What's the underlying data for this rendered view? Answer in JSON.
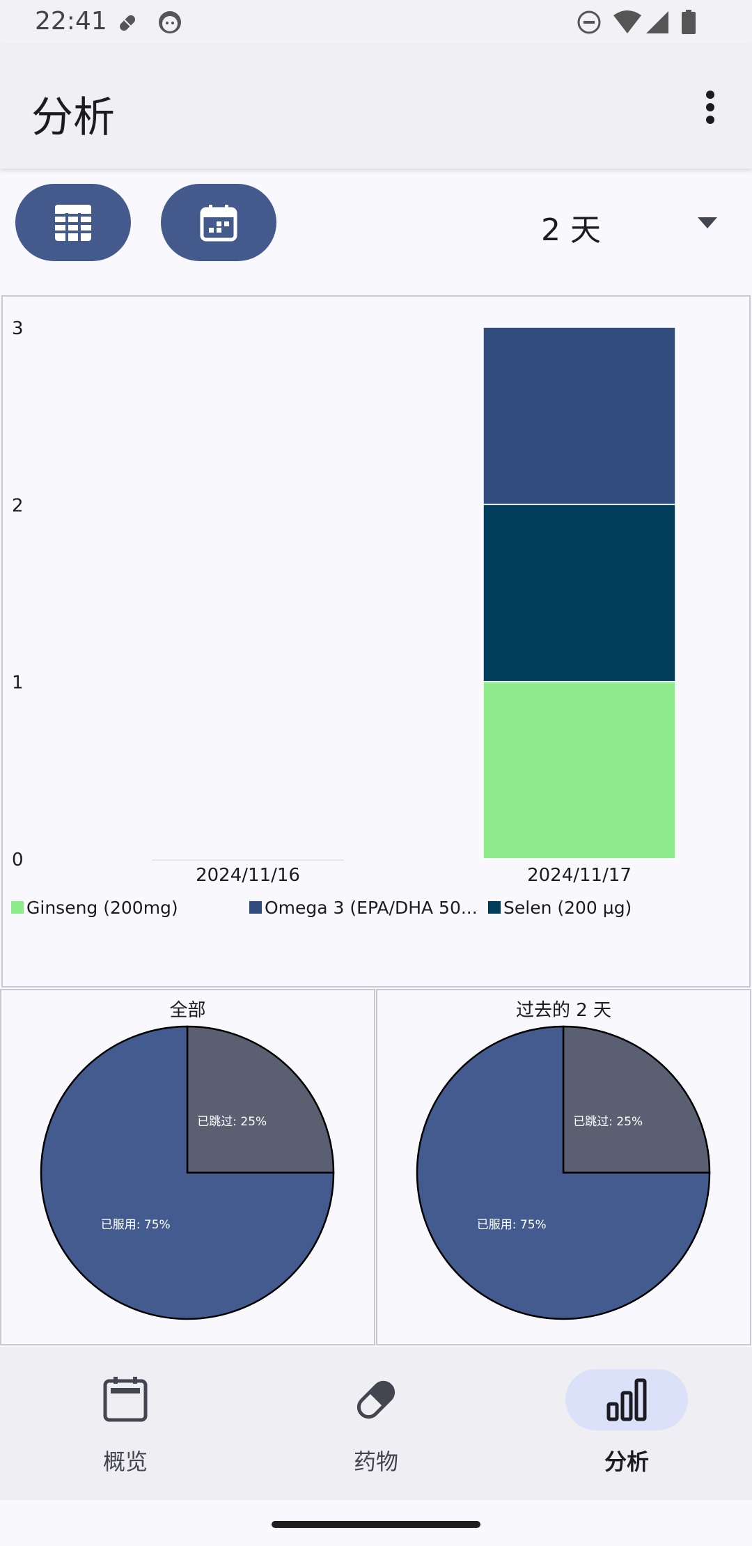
{
  "status_bar": {
    "time": "22:41"
  },
  "app_bar": {
    "title": "分析"
  },
  "controls": {
    "range_label": "2 天"
  },
  "chart_data": [
    {
      "type": "bar",
      "stacked": true,
      "categories": [
        "2024/11/16",
        "2024/11/17"
      ],
      "series": [
        {
          "name": "Ginseng (200mg)",
          "values": [
            0,
            1
          ],
          "color": "#8fec8d"
        },
        {
          "name": "Selen (200 µg)",
          "values": [
            0,
            1
          ],
          "color": "#003d5b"
        },
        {
          "name": "Omega 3 (EPA/DHA 50...",
          "values": [
            0,
            1
          ],
          "color": "#314d7d"
        }
      ],
      "legend_order": [
        0,
        2,
        1
      ],
      "yticks": [
        "0",
        "1",
        "2",
        "3"
      ],
      "ylim": [
        0,
        3
      ],
      "legend": "bottom"
    },
    {
      "type": "pie",
      "title": "全部",
      "slices": [
        {
          "label": "已跳过: 25%",
          "value": 25,
          "color": "#5a5f72"
        },
        {
          "label": "已服用: 75%",
          "value": 75,
          "color": "#435b8e"
        }
      ]
    },
    {
      "type": "pie",
      "title": "过去的 2 天",
      "slices": [
        {
          "label": "已跳过: 25%",
          "value": 25,
          "color": "#5a5f72"
        },
        {
          "label": "已服用: 75%",
          "value": 75,
          "color": "#435b8e"
        }
      ]
    }
  ],
  "bottom_nav": {
    "items": [
      {
        "label": "概览",
        "icon": "calendar-overview-icon",
        "active": false
      },
      {
        "label": "药物",
        "icon": "pill-icon",
        "active": false
      },
      {
        "label": "分析",
        "icon": "bar-chart-icon",
        "active": true
      }
    ]
  }
}
